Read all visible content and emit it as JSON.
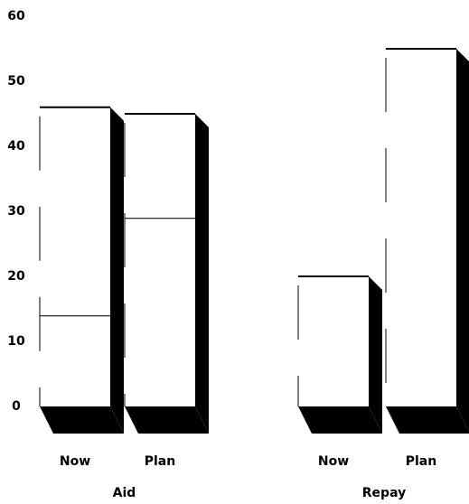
{
  "chart_data": {
    "type": "bar",
    "categories": [
      "Now",
      "Plan",
      "Now",
      "Plan"
    ],
    "groups": [
      {
        "label": "Aid",
        "span": [
          0,
          1
        ]
      },
      {
        "label": "Repay",
        "span": [
          2,
          3
        ]
      }
    ],
    "series": [
      {
        "color": "#ffffff",
        "values": [
          14,
          29,
          20,
          55
        ]
      },
      {
        "color": "#ffffff",
        "values": [
          32,
          16,
          null,
          null
        ]
      }
    ],
    "shadow_color": "#000000",
    "ylim": [
      0,
      60
    ],
    "yticks": [
      0,
      10,
      20,
      30,
      40,
      50,
      60
    ],
    "grid": false,
    "stacked": true
  }
}
